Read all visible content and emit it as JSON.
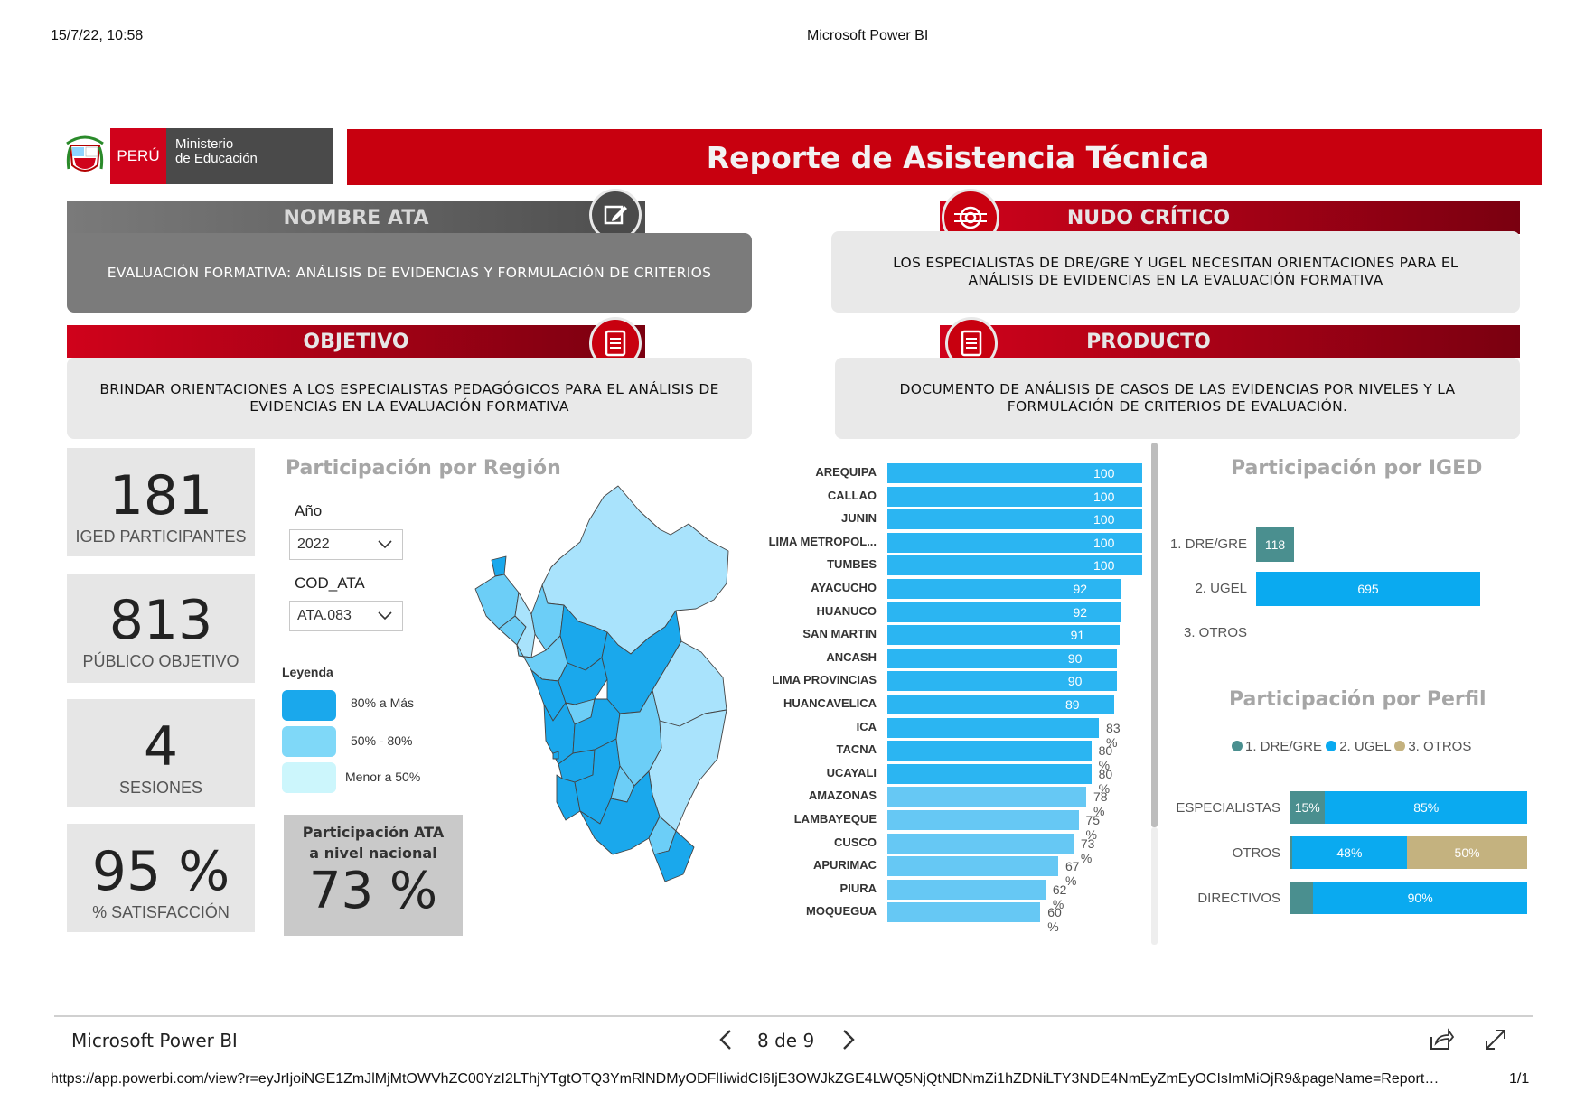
{
  "print": {
    "datetime": "15/7/22, 10:58",
    "title": "Microsoft Power BI",
    "url": "https://app.powerbi.com/view?r=eyJrIjoiNGE1ZmJlMjMtOWVhZC00YzI2LThjYTgtOTQ3YmRlNDMyODFlIiwidCI6IjE3OWJkZGE4LWQ5NjQtNDNmZi1hZDNiLTY3NDE4NmEyZmEyOCIsImMiOjR9&pageName=Report…",
    "page_count": "1/1"
  },
  "logo": {
    "peru": "PERÚ",
    "minedu_line1": "Ministerio",
    "minedu_line2": "de Educación"
  },
  "report_title": "Reporte de Asistencia Técnica",
  "sections": {
    "nombre_ata": {
      "header": "NOMBRE ATA",
      "text": "EVALUACIÓN FORMATIVA: ANÁLISIS DE EVIDENCIAS Y FORMULACIÓN DE CRITERIOS"
    },
    "nudo_critico": {
      "header": "NUDO CRÍTICO",
      "text": "LOS ESPECIALISTAS DE DRE/GRE Y UGEL  NECESITAN ORIENTACIONES PARA EL ANÁLISIS DE EVIDENCIAS EN LA EVALUACIÓN FORMATIVA"
    },
    "objetivo": {
      "header": "OBJETIVO",
      "text": "BRINDAR ORIENTACIONES A LOS ESPECIALISTAS PEDAGÓGICOS PARA EL ANÁLISIS DE EVIDENCIAS EN LA EVALUACIÓN FORMATIVA"
    },
    "producto": {
      "header": "PRODUCTO",
      "text": "DOCUMENTO DE ANÁLISIS DE CASOS DE LAS EVIDENCIAS POR NIVELES Y LA FORMULACIÓN DE CRITERIOS DE EVALUACIÓN."
    }
  },
  "kpis": [
    {
      "value": "181",
      "label": "IGED PARTICIPANTES"
    },
    {
      "value": "813",
      "label": "PÚBLICO OBJETIVO"
    },
    {
      "value": "4",
      "label": "SESIONES"
    },
    {
      "value": "95 %",
      "label": "% SATISFACCIÓN"
    }
  ],
  "region_panel": {
    "title": "Participación por Región",
    "year_label": "Año",
    "year_value": "2022",
    "cod_label": "COD_ATA",
    "cod_value": "ATA.083",
    "legend_title": "Leyenda",
    "legend": [
      {
        "label": "80% a Más",
        "color": "#1aa8ec"
      },
      {
        "label": "50% - 80%",
        "color": "#7fd8f8"
      },
      {
        "label": "Menor a 50%",
        "color": "#ccf6fc"
      }
    ],
    "ata_national_label_1": "Participación ATA",
    "ata_national_label_2": "a nivel nacional",
    "ata_national_value": "73 %"
  },
  "colors": {
    "bar_high": "#2bb5f2",
    "bar_mid": "#66c8f4",
    "dre": "#4a8f8f",
    "ugel": "#0aaaf0",
    "otros": "#c4b27f",
    "red": "#c8000f"
  },
  "chart_data": [
    {
      "type": "bar",
      "orientation": "horizontal",
      "categories": [
        "AREQUIPA",
        "CALLAO",
        "JUNIN",
        "LIMA METROPOL...",
        "TUMBES",
        "AYACUCHO",
        "HUANUCO",
        "SAN MARTIN",
        "ANCASH",
        "LIMA PROVINCIAS",
        "HUANCAVELICA",
        "ICA",
        "TACNA",
        "UCAYALI",
        "AMAZONAS",
        "LAMBAYEQUE",
        "CUSCO",
        "APURIMAC",
        "PIURA",
        "MOQUEGUA"
      ],
      "values": [
        100,
        100,
        100,
        100,
        100,
        92,
        92,
        91,
        90,
        90,
        89,
        83,
        80,
        80,
        78,
        75,
        73,
        67,
        62,
        60
      ],
      "value_labels": [
        "100 %",
        "100 %",
        "100 %",
        "100 %",
        "100 %",
        "92 %",
        "92 %",
        "91 %",
        "90 %",
        "90 %",
        "89 %",
        "83 %",
        "80 %",
        "80 %",
        "78 %",
        "75 %",
        "73 %",
        "67 %",
        "62 %",
        "60 %"
      ],
      "xlim": [
        0,
        100
      ]
    },
    {
      "type": "bar",
      "orientation": "horizontal",
      "title": "Participación por IGED",
      "categories": [
        "1. DRE/GRE",
        "2. UGEL",
        "3. OTROS"
      ],
      "values": [
        118,
        695,
        0
      ],
      "value_labels": [
        "118",
        "695",
        ""
      ]
    },
    {
      "type": "bar",
      "orientation": "horizontal",
      "stacked": "percent",
      "title": "Participación por Perfil",
      "categories": [
        "ESPECIALISTAS",
        "OTROS",
        "DIRECTIVOS"
      ],
      "series": [
        {
          "name": "1. DRE/GRE",
          "values": [
            15,
            1,
            10
          ],
          "labels": [
            "15%",
            "",
            ""
          ]
        },
        {
          "name": "2. UGEL",
          "values": [
            85,
            48,
            90
          ],
          "labels": [
            "85%",
            "48%",
            "90%"
          ]
        },
        {
          "name": "3. OTROS",
          "values": [
            0,
            50,
            0
          ],
          "labels": [
            "",
            "50%",
            ""
          ]
        }
      ]
    }
  ],
  "footer": {
    "app_name": "Microsoft Power BI",
    "page_indicator": "8 de 9"
  }
}
